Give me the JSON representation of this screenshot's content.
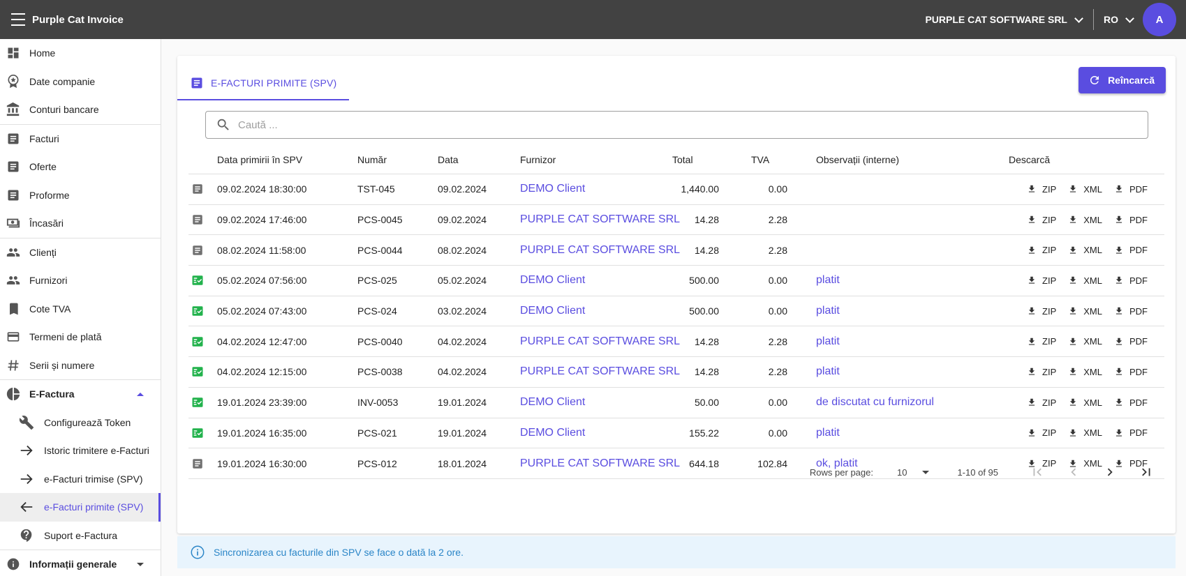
{
  "app": {
    "title": "Purple Cat Invoice"
  },
  "header": {
    "company": "PURPLE CAT SOFTWARE SRL",
    "language": "RO",
    "avatar_initial": "A"
  },
  "sidebar": {
    "items": [
      {
        "label": "Home",
        "icon": "dashboard-icon"
      },
      {
        "label": "Date companie",
        "icon": "award-icon"
      },
      {
        "label": "Conturi bancare",
        "icon": "bank-icon"
      },
      {
        "label": "Facturi",
        "icon": "document-icon"
      },
      {
        "label": "Oferte",
        "icon": "document-icon"
      },
      {
        "label": "Proforme",
        "icon": "document-icon"
      },
      {
        "label": "Încasări",
        "icon": "cash-icon"
      },
      {
        "label": "Clienți",
        "icon": "people-icon"
      },
      {
        "label": "Furnizori",
        "icon": "people-icon"
      },
      {
        "label": "Cote TVA",
        "icon": "book-icon"
      },
      {
        "label": "Termeni de plată",
        "icon": "credit-card-icon"
      },
      {
        "label": "Serii și numere",
        "icon": "hash-icon"
      },
      {
        "label": "E-Factura",
        "icon": "pie-chart-icon"
      },
      {
        "label": "Configurează Token",
        "icon": "wrench-icon"
      },
      {
        "label": "Istoric trimitere e-Facturi",
        "icon": "arrow-right-icon"
      },
      {
        "label": "e-Facturi trimise (SPV)",
        "icon": "arrow-right-icon"
      },
      {
        "label": "e-Facturi primite (SPV)",
        "icon": "arrow-left-icon"
      },
      {
        "label": "Suport e-Factura",
        "icon": "help-icon"
      },
      {
        "label": "Informații generale",
        "icon": "info-icon"
      }
    ]
  },
  "main": {
    "tab_label": "E-FACTURI PRIMITE (SPV)",
    "reload_label": "Reîncarcă",
    "search_placeholder": "Caută ...",
    "columns": [
      "Data primirii în SPV",
      "Număr",
      "Data",
      "Furnizor",
      "Total",
      "TVA",
      "Observații (interne)",
      "Descarcă"
    ],
    "download_labels": [
      "ZIP",
      "XML",
      "PDF"
    ],
    "rows": [
      {
        "status": "doc",
        "received": "09.02.2024 18:30:00",
        "number": "TST-045",
        "date": "09.02.2024",
        "supplier": "DEMO Client",
        "total": "1,440.00",
        "tva": "0.00",
        "notes": ""
      },
      {
        "status": "doc",
        "received": "09.02.2024 17:46:00",
        "number": "PCS-0045",
        "date": "09.02.2024",
        "supplier": "PURPLE CAT SOFTWARE SRL",
        "total": "14.28",
        "tva": "2.28",
        "notes": ""
      },
      {
        "status": "doc",
        "received": "08.02.2024 11:58:00",
        "number": "PCS-0044",
        "date": "08.02.2024",
        "supplier": "PURPLE CAT SOFTWARE SRL",
        "total": "14.28",
        "tva": "2.28",
        "notes": ""
      },
      {
        "status": "checked",
        "received": "05.02.2024 07:56:00",
        "number": "PCS-025",
        "date": "05.02.2024",
        "supplier": "DEMO Client",
        "total": "500.00",
        "tva": "0.00",
        "notes": "platit"
      },
      {
        "status": "checked",
        "received": "05.02.2024 07:43:00",
        "number": "PCS-024",
        "date": "03.02.2024",
        "supplier": "DEMO Client",
        "total": "500.00",
        "tva": "0.00",
        "notes": "platit"
      },
      {
        "status": "checked",
        "received": "04.02.2024 12:47:00",
        "number": "PCS-0040",
        "date": "04.02.2024",
        "supplier": "PURPLE CAT SOFTWARE SRL",
        "total": "14.28",
        "tva": "2.28",
        "notes": "platit"
      },
      {
        "status": "checked",
        "received": "04.02.2024 12:15:00",
        "number": "PCS-0038",
        "date": "04.02.2024",
        "supplier": "PURPLE CAT SOFTWARE SRL",
        "total": "14.28",
        "tva": "2.28",
        "notes": "platit"
      },
      {
        "status": "checked",
        "received": "19.01.2024 23:39:00",
        "number": "INV-0053",
        "date": "19.01.2024",
        "supplier": "DEMO Client",
        "total": "50.00",
        "tva": "0.00",
        "notes": "de discutat cu furnizorul"
      },
      {
        "status": "checked",
        "received": "19.01.2024 16:35:00",
        "number": "PCS-021",
        "date": "19.01.2024",
        "supplier": "DEMO Client",
        "total": "155.22",
        "tva": "0.00",
        "notes": "platit"
      },
      {
        "status": "doc",
        "received": "19.01.2024 16:30:00",
        "number": "PCS-012",
        "date": "18.01.2024",
        "supplier": "PURPLE CAT SOFTWARE SRL",
        "total": "644.18",
        "tva": "102.84",
        "notes": "ok, platit"
      }
    ],
    "pagination": {
      "rows_per_page_label": "Rows per page:",
      "rows_per_page": "10",
      "range": "1-10 of 95"
    }
  },
  "info_banner": "Sincronizarea cu facturile din SPV se face o dată la 2 ore.",
  "colors": {
    "accent": "#5a4de0",
    "topbar": "#424242",
    "success": "#22b24c",
    "info_text": "#2a85c7",
    "info_bg": "#e8f4fd"
  }
}
